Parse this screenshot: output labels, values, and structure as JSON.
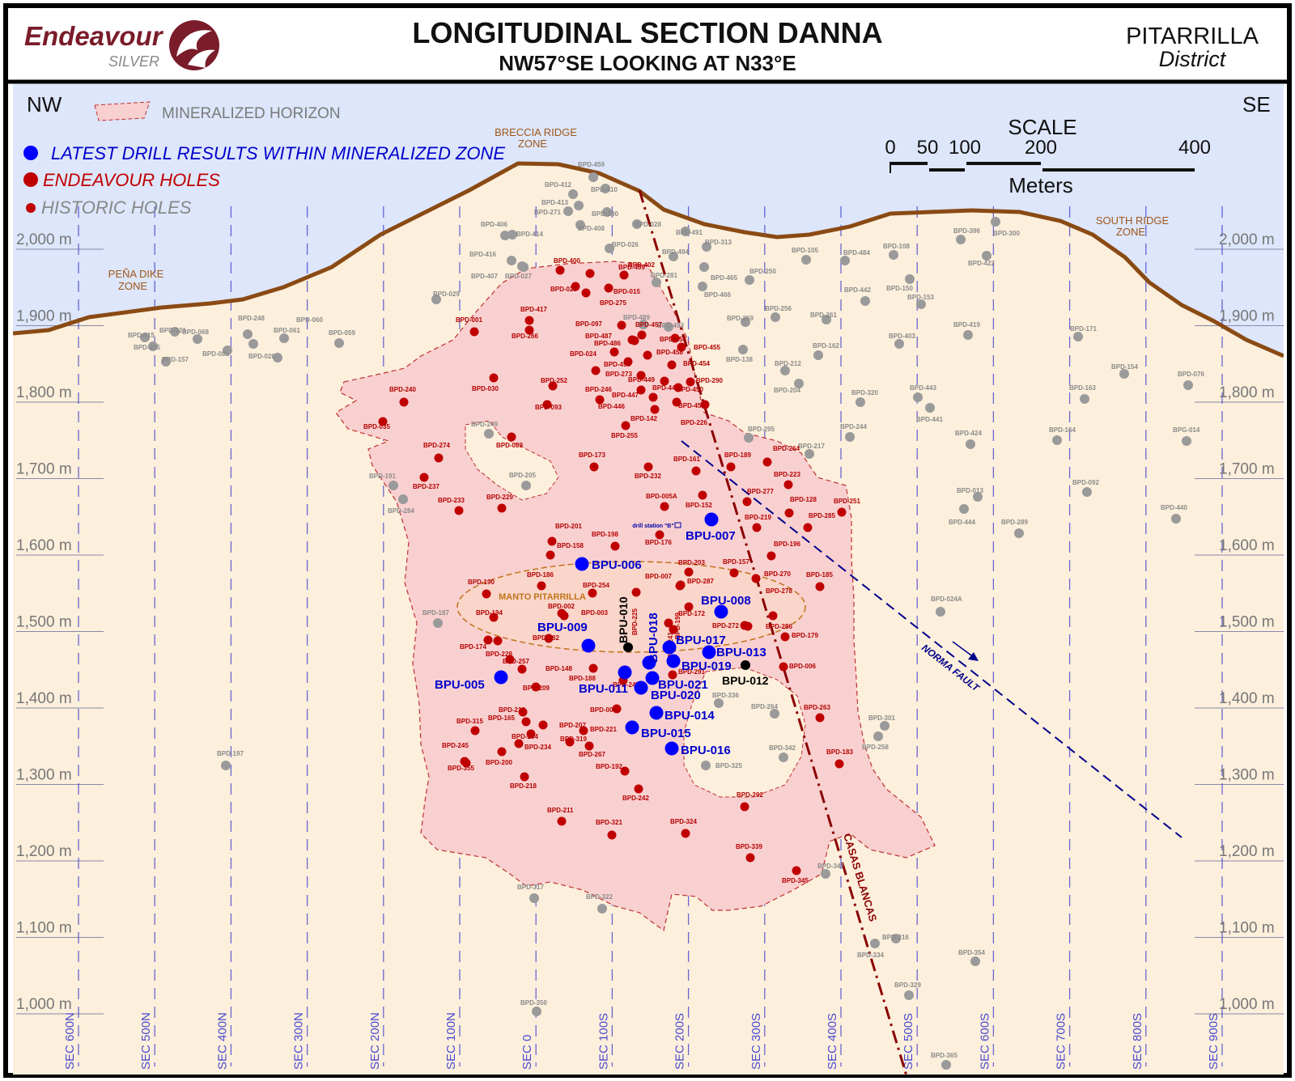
{
  "header": {
    "logo_name": "Endeavour",
    "logo_sub": "SILVER",
    "title": "LONGITUDINAL SECTION DANNA",
    "subtitle": "NW57°SE LOOKING AT N33°E",
    "district_name": "PITARRILLA",
    "district_label": "District"
  },
  "orientation": {
    "left": "NW",
    "right": "SE"
  },
  "legend": {
    "mineralized": "MINERALIZED HORIZON",
    "latest": "LATEST DRILL RESULTS WITHIN MINERALIZED ZONE",
    "endeavour": "ENDEAVOUR HOLES",
    "historic": "HISTORIC HOLES"
  },
  "scale": {
    "title": "SCALE",
    "units": "Meters",
    "ticks": [
      "0",
      "50",
      "100",
      "200",
      "400"
    ]
  },
  "zones": {
    "breccia_1": "BRECCIA RIDGE",
    "breccia_2": "ZONE",
    "pena_1": "PEÑA DIKE",
    "pena_2": "ZONE",
    "south_1": "SOUTH RIDGE",
    "south_2": "ZONE",
    "manto": "MANTO PITARRILLA",
    "drill_station": "drill station \"B\""
  },
  "faults": {
    "norma": "NORMA FAULT",
    "casas": "CASAS BLANCAS"
  },
  "colors": {
    "sky": "#dde6fa",
    "ground": "#fcefdc",
    "topography": "#8a4a14",
    "mineralized_fill": "#f9d0d0",
    "endeavour": "#c00000",
    "historic": "#9a9a9a",
    "latest": "#0000ff",
    "label_red": "#b50000",
    "label_blue": "#0000cc",
    "norma_fault": "#00008b",
    "casas_fault": "#8b0000"
  },
  "elevation_labels": [
    "2,000 m",
    "1,900 m",
    "1,800 m",
    "1,700 m",
    "1,600 m",
    "1,500 m",
    "1,400 m",
    "1,300 m",
    "1,200 m",
    "1,100 m",
    "1,000 m"
  ],
  "sections": [
    "SEC 600N",
    "SEC 500N",
    "SEC 400N",
    "SEC 300N",
    "SEC 200N",
    "SEC 100N",
    "SEC 0",
    "SEC 100S",
    "SEC 200S",
    "SEC 300S",
    "SEC 400S",
    "SEC 500S",
    "SEC 600S",
    "SEC 700S",
    "SEC 800S",
    "SEC 900S"
  ],
  "latest_holes": [
    "BPU-005",
    "BPU-006",
    "BPU-007",
    "BPU-008",
    "BPU-009",
    "BPU-011",
    "BPU-013",
    "BPU-014",
    "BPU-015",
    "BPU-016",
    "BPU-017",
    "BPU-018",
    "BPU-019",
    "BPU-020",
    "BPU-021"
  ],
  "other_bpu": [
    "BPU-010",
    "BPU-012"
  ],
  "endeavour_holes": [
    "BPD-400",
    "BPD-409",
    "BPD-402",
    "BPD-023",
    "BPD-015",
    "BPD-275",
    "BPD-417",
    "BPD-266",
    "BPD-001",
    "BPD-097",
    "BPD-457",
    "BPD-487",
    "BPD-486",
    "BPD-456",
    "BPD-455",
    "BPD-024",
    "BPD-458",
    "BPD-490",
    "BPD-454",
    "BPD-273",
    "BPD-449",
    "BPD-290",
    "BPD-448",
    "BPD-450",
    "BPD-447",
    "BPD-446",
    "BPD-453",
    "BPD-142",
    "BPD-226",
    "BPD-246",
    "BPD-252",
    "BPD-093",
    "BPD-030",
    "BPD-240",
    "BPD-035",
    "BPD-255",
    "BPD-089",
    "BPD-173",
    "BPD-274",
    "BPD-237",
    "BPD-233",
    "BPD-229",
    "BPD-232",
    "BPD-161",
    "BPD-189",
    "BPD-264",
    "BPD-223",
    "BPD-005A",
    "BPD-152",
    "BPD-277",
    "BPD-128",
    "BPD-251",
    "BPD-219",
    "BPD-285",
    "BPD-201",
    "BPD-198",
    "BPD-176",
    "BPD-158",
    "BPD-196",
    "BPD-203",
    "BPD-157",
    "BPD-186",
    "BPD-007",
    "BPD-270",
    "BPD-185",
    "BPD-190",
    "BPD-254",
    "BPD-287",
    "BPD-003",
    "BPD-278",
    "BPD-002",
    "BPD-172",
    "BPD-272",
    "BPD-286",
    "BPD-179",
    "BPD-194",
    "BPD-182",
    "BPD-174",
    "BPD-228",
    "BPD-257",
    "BPD-148",
    "BPD-188",
    "BPD-291",
    "BPD-209",
    "BPD-247",
    "BPD-006",
    "BPD-245",
    "BPD-213",
    "BPD-165",
    "BPD-315",
    "BPD-294",
    "BPD-207",
    "BPD-234",
    "BPD-319",
    "BPD-004",
    "BPD-221",
    "BPD-267",
    "BPD-263",
    "BPD-355",
    "BPD-200",
    "BPD-192",
    "BPD-183",
    "BPD-218",
    "BPD-242",
    "BPD-202",
    "BPD-211",
    "BPD-321",
    "BPD-324",
    "BPD-339",
    "BPD-345",
    "BPD-225",
    "BPD-241",
    "BPD-199"
  ],
  "historic_holes": [
    "BPD-459",
    "BPD-412",
    "BPD-410",
    "BPD-413",
    "BPD-271",
    "BPD-280",
    "BPD-406",
    "BPD-414",
    "BPD-408",
    "BPD-028",
    "BPD-491",
    "BPD-313",
    "BPD-026",
    "BPD-494",
    "BPD-416",
    "BPD-407",
    "BPD-027",
    "BPD-281",
    "BPD-465",
    "BPD-250",
    "BPD-466",
    "BPD-105",
    "BPD-484",
    "BPD-108",
    "BPD-396",
    "BPD-300",
    "BPD-422",
    "BPD-442",
    "BPD-150",
    "BPD-153",
    "BPD-029",
    "BPD-489",
    "BPD-493",
    "BPD-259",
    "BPD-256",
    "BPD-261",
    "BPD-419",
    "BPD-403",
    "BPD-171",
    "BPD-162",
    "BPD-138",
    "BPD-212",
    "BPD-154",
    "BPD-076",
    "BPD-204",
    "BPD-320",
    "BPD-443",
    "BPD-441",
    "BPD-163",
    "BPD-249",
    "BPD-295",
    "BPD-244",
    "BPD-217",
    "BPD-424",
    "BPD-164",
    "BPG-014",
    "BPD-191",
    "BPD-205",
    "BPD-284",
    "BPD-092",
    "BPD-013",
    "BPD-444",
    "BPD-289",
    "BPD-440",
    "BPD-024A",
    "BPD-187",
    "BPD-336",
    "BPD-264",
    "BPD-301",
    "BPD-258",
    "BPD-197",
    "BPD-342",
    "BPD-325",
    "BPD-317",
    "BPD-322",
    "BPD-347",
    "BPD-216",
    "BPD-334",
    "BPD-354",
    "BPD-329",
    "BPD-350",
    "BPD-365",
    "BPD-415",
    "BPD-395",
    "BPD-021",
    "BPD-068",
    "BPD-248",
    "BPD-061",
    "BPD-060",
    "BPD-059",
    "BPD-157",
    "BPD-020",
    "BPD-081"
  ]
}
